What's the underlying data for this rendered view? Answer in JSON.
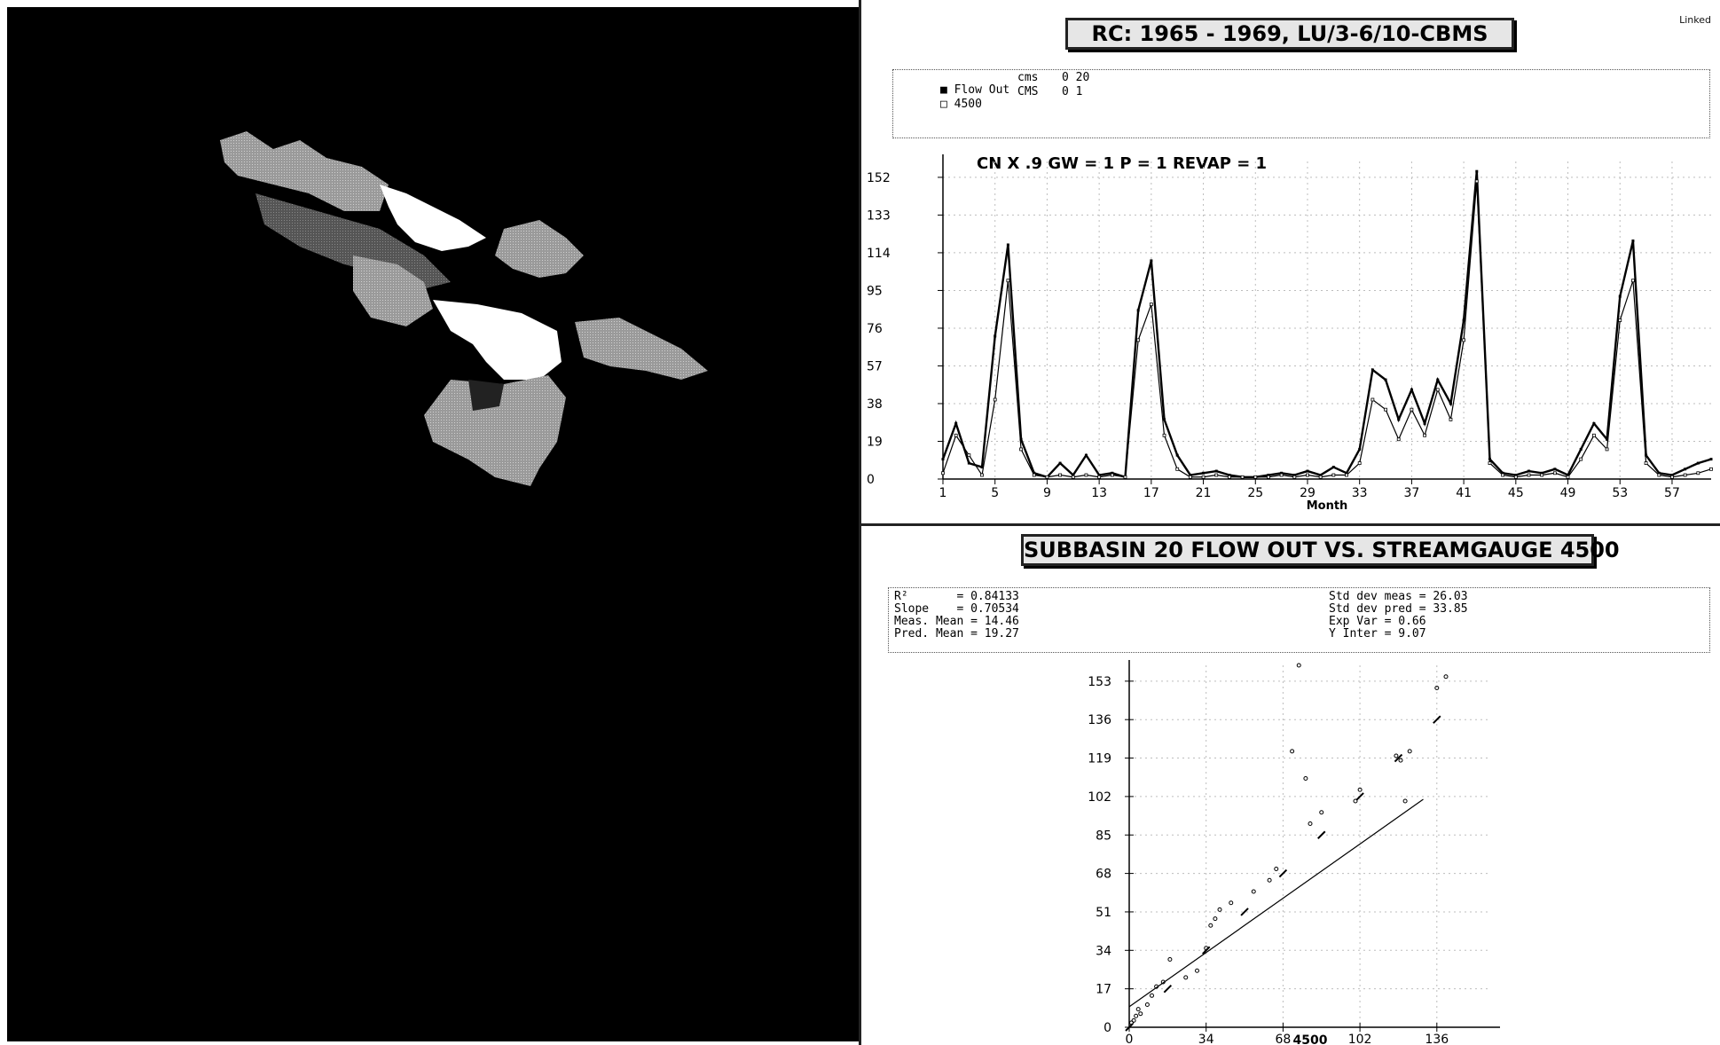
{
  "corner_label": "Linked",
  "colors": {
    "map_bg": "#000000",
    "ink": "#000000",
    "grid": "#bdbdbd",
    "title_bg": "#e6e6e6"
  },
  "time_chart": {
    "type": "line",
    "title": "RC: 1965 - 1969, LU/3-6/10-CBMS",
    "annotation": "CN X .9  GW = 1  P = 1  REVAP = 1",
    "xlabel": "Month",
    "ylabel": "",
    "xlim": [
      1,
      60
    ],
    "ylim": [
      0,
      160
    ],
    "xticks": [
      1,
      5,
      9,
      13,
      17,
      21,
      25,
      29,
      33,
      37,
      41,
      45,
      49,
      53,
      57
    ],
    "yticks": [
      0,
      19,
      38,
      57,
      76,
      95,
      114,
      133,
      152
    ],
    "grid": true,
    "legend": {
      "position": "top",
      "entries": [
        {
          "marker": "■",
          "name": "Flow Out",
          "unit": "cms",
          "value": "0 20"
        },
        {
          "marker": "□",
          "name": "4500",
          "unit": "CMS",
          "value": "0 1"
        }
      ]
    },
    "series": [
      {
        "name": "Flow Out",
        "values": [
          10,
          28,
          8,
          6,
          72,
          118,
          20,
          3,
          1,
          8,
          2,
          12,
          2,
          3,
          1,
          85,
          110,
          30,
          12,
          2,
          3,
          4,
          2,
          1,
          1,
          2,
          3,
          2,
          4,
          2,
          6,
          3,
          15,
          55,
          50,
          30,
          45,
          28,
          50,
          38,
          80,
          155,
          10,
          3,
          2,
          4,
          3,
          5,
          2,
          15,
          28,
          20,
          92,
          120,
          12,
          3,
          2,
          5,
          8,
          10
        ]
      },
      {
        "name": "4500",
        "values": [
          3,
          22,
          12,
          2,
          40,
          100,
          15,
          2,
          1,
          2,
          1,
          2,
          1,
          2,
          1,
          70,
          88,
          22,
          5,
          1,
          1,
          2,
          1,
          1,
          1,
          1,
          2,
          1,
          2,
          1,
          2,
          2,
          8,
          40,
          35,
          20,
          35,
          22,
          45,
          30,
          70,
          150,
          8,
          2,
          1,
          2,
          2,
          3,
          1,
          10,
          22,
          15,
          80,
          100,
          8,
          2,
          1,
          2,
          3,
          5
        ]
      }
    ]
  },
  "scatter_chart": {
    "type": "scatter",
    "title": "SUBBASIN 20 FLOW OUT VS. STREAMGAUGE 4500",
    "xlabel": "4500",
    "ylabel": "",
    "xlim": [
      0,
      160
    ],
    "ylim": [
      0,
      160
    ],
    "xticks": [
      0,
      34,
      68,
      102,
      136
    ],
    "yticks": [
      0,
      17,
      34,
      51,
      68,
      85,
      102,
      119,
      136,
      153
    ],
    "grid": true,
    "stats_left": [
      "R²       = 0.84133",
      "Slope    = 0.70534",
      "Meas. Mean = 14.46",
      "Pred. Mean = 19.27"
    ],
    "stats_right": [
      "Std dev meas = 26.03",
      "Std dev pred = 33.85",
      "Exp Var = 0.66",
      "Y Inter = 9.07"
    ],
    "points": [
      [
        1,
        2
      ],
      [
        2,
        3
      ],
      [
        3,
        5
      ],
      [
        4,
        8
      ],
      [
        5,
        6
      ],
      [
        8,
        10
      ],
      [
        10,
        14
      ],
      [
        12,
        18
      ],
      [
        15,
        20
      ],
      [
        18,
        30
      ],
      [
        25,
        22
      ],
      [
        30,
        25
      ],
      [
        34,
        35
      ],
      [
        36,
        45
      ],
      [
        38,
        48
      ],
      [
        40,
        52
      ],
      [
        45,
        55
      ],
      [
        55,
        60
      ],
      [
        62,
        65
      ],
      [
        65,
        70
      ],
      [
        72,
        122
      ],
      [
        75,
        160
      ],
      [
        78,
        110
      ],
      [
        80,
        90
      ],
      [
        85,
        95
      ],
      [
        100,
        100
      ],
      [
        102,
        105
      ],
      [
        118,
        120
      ],
      [
        120,
        118
      ],
      [
        122,
        100
      ],
      [
        124,
        122
      ],
      [
        136,
        150
      ],
      [
        140,
        155
      ]
    ],
    "fit_line": {
      "slope": 0.70534,
      "intercept": 9.07
    },
    "one_to_one": true
  }
}
